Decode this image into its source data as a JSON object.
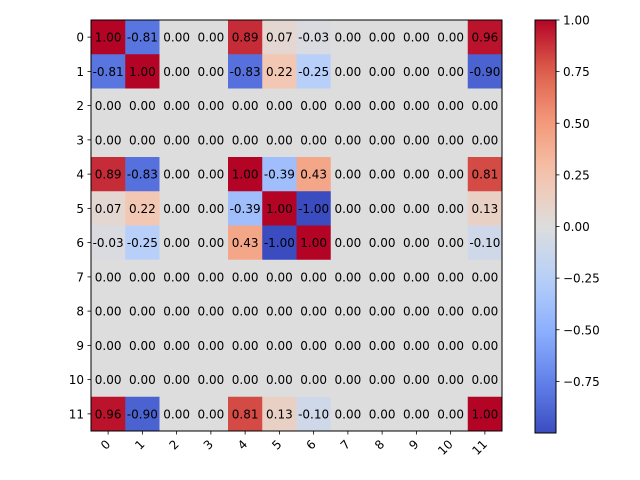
{
  "chart_data": {
    "type": "heatmap",
    "title": "",
    "xlabel": "",
    "ylabel": "",
    "x_categories": [
      "0",
      "1",
      "2",
      "3",
      "4",
      "5",
      "6",
      "7",
      "8",
      "9",
      "10",
      "11"
    ],
    "y_categories": [
      "0",
      "1",
      "2",
      "3",
      "4",
      "5",
      "6",
      "7",
      "8",
      "9",
      "10",
      "11"
    ],
    "colormap": "coolwarm",
    "value_range": [
      -1.0,
      1.0
    ],
    "value_format": "0.00",
    "x_tick_rotation_deg": 45,
    "matrix": [
      [
        1.0,
        -0.81,
        0.0,
        0.0,
        0.89,
        0.07,
        -0.03,
        0.0,
        0.0,
        0.0,
        0.0,
        0.96
      ],
      [
        -0.81,
        1.0,
        0.0,
        0.0,
        -0.83,
        0.22,
        -0.25,
        0.0,
        0.0,
        0.0,
        0.0,
        -0.9
      ],
      [
        0.0,
        0.0,
        0.0,
        0.0,
        0.0,
        0.0,
        0.0,
        0.0,
        0.0,
        0.0,
        0.0,
        0.0
      ],
      [
        0.0,
        0.0,
        0.0,
        0.0,
        0.0,
        0.0,
        0.0,
        0.0,
        0.0,
        0.0,
        0.0,
        0.0
      ],
      [
        0.89,
        -0.83,
        0.0,
        0.0,
        1.0,
        -0.39,
        0.43,
        0.0,
        0.0,
        0.0,
        0.0,
        0.81
      ],
      [
        0.07,
        0.22,
        0.0,
        0.0,
        -0.39,
        1.0,
        -1.0,
        0.0,
        0.0,
        0.0,
        0.0,
        0.13
      ],
      [
        -0.03,
        -0.25,
        0.0,
        0.0,
        0.43,
        -1.0,
        1.0,
        0.0,
        0.0,
        0.0,
        0.0,
        -0.1
      ],
      [
        0.0,
        0.0,
        0.0,
        0.0,
        0.0,
        0.0,
        0.0,
        0.0,
        0.0,
        0.0,
        0.0,
        0.0
      ],
      [
        0.0,
        0.0,
        0.0,
        0.0,
        0.0,
        0.0,
        0.0,
        0.0,
        0.0,
        0.0,
        0.0,
        0.0
      ],
      [
        0.0,
        0.0,
        0.0,
        0.0,
        0.0,
        0.0,
        0.0,
        0.0,
        0.0,
        0.0,
        0.0,
        0.0
      ],
      [
        0.0,
        0.0,
        0.0,
        0.0,
        0.0,
        0.0,
        0.0,
        0.0,
        0.0,
        0.0,
        0.0,
        0.0
      ],
      [
        0.96,
        -0.9,
        0.0,
        0.0,
        0.81,
        0.13,
        -0.1,
        0.0,
        0.0,
        0.0,
        0.0,
        1.0
      ]
    ],
    "colorbar": {
      "range": [
        -1.0,
        1.0
      ],
      "ticks": [
        -0.75,
        -0.5,
        -0.25,
        0.0,
        0.25,
        0.5,
        0.75,
        1.0
      ],
      "tick_labels": [
        "−0.75",
        "−0.50",
        "−0.25",
        "0.00",
        "0.25",
        "0.50",
        "0.75",
        "1.00"
      ]
    }
  }
}
